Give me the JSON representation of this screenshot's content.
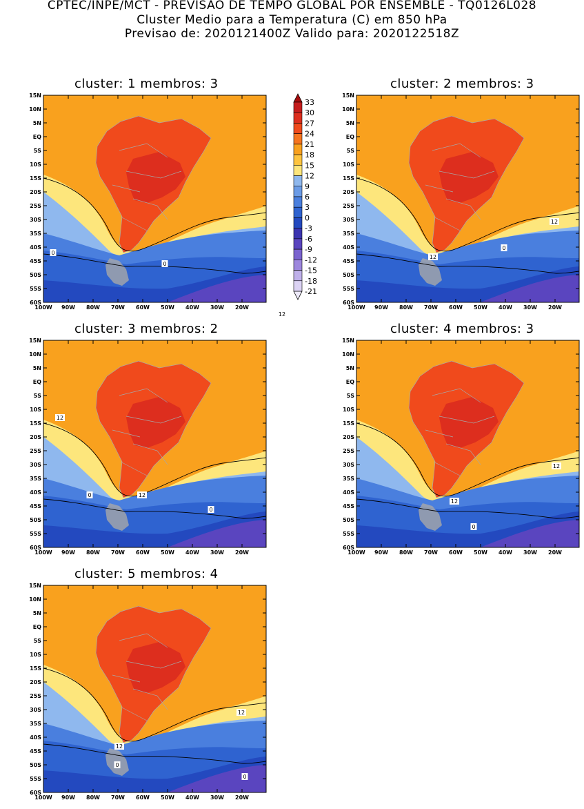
{
  "header": {
    "line1": "CPTEC/INPE/MCT - PREVISAO DE TEMPO GLOBAL POR ENSEMBLE - TQ0126L028",
    "line2": "Cluster Medio para a Temperatura (C) em 850 hPa",
    "line3": "Previsao de: 2020121400Z   Valido para: 2020122518Z"
  },
  "panels": [
    {
      "title": "cluster: 1   membros: 3",
      "contour_labels": [
        "12",
        "0",
        "0"
      ]
    },
    {
      "title": "cluster: 2   membros: 3",
      "contour_labels": [
        "12",
        "12",
        "0"
      ]
    },
    {
      "title": "cluster: 3   membros: 2",
      "contour_labels": [
        "12",
        "12",
        "0",
        "0"
      ]
    },
    {
      "title": "cluster: 4   membros: 3",
      "contour_labels": [
        "12",
        "12",
        "0"
      ]
    },
    {
      "title": "cluster: 5   membros: 4",
      "contour_labels": [
        "12",
        "12",
        "0",
        "0"
      ]
    }
  ],
  "axes": {
    "lat_ticks": [
      "15N",
      "10N",
      "5N",
      "EQ",
      "5S",
      "10S",
      "15S",
      "20S",
      "25S",
      "30S",
      "35S",
      "40S",
      "45S",
      "50S",
      "55S",
      "60S"
    ],
    "lon_ticks": [
      "100W",
      "90W",
      "80W",
      "70W",
      "60W",
      "50W",
      "40W",
      "30W",
      "20W"
    ]
  },
  "colorbar": {
    "labels": [
      "33",
      "30",
      "27",
      "24",
      "21",
      "18",
      "15",
      "12",
      "9",
      "6",
      "3",
      "0",
      "-3",
      "-6",
      "-9",
      "-12",
      "-15",
      "-18",
      "-21"
    ],
    "colors": [
      "#a50d0d",
      "#c51d1d",
      "#dd2e1e",
      "#f04a1c",
      "#f6741f",
      "#f9a11e",
      "#fec43f",
      "#fde67c",
      "#8fb8ee",
      "#6b9be6",
      "#4a7fde",
      "#2f63d0",
      "#2349bf",
      "#3b34b0",
      "#5a45bf",
      "#7a63cf",
      "#9d87de",
      "#bfb0ea",
      "#dcd3f4",
      "#eeeafa"
    ]
  },
  "colors": {
    "sea_orange": "#f9a11e",
    "land_red": "#f04a1c",
    "hot_red": "#dd2e1e",
    "pale_yellow": "#fde67c",
    "light_blue": "#8fb8ee",
    "mid_blue": "#4a7fde",
    "deep_blue": "#2f63d0",
    "navy": "#2349bf",
    "purple": "#5a45bf",
    "border_gray": "#a8a8a8"
  }
}
